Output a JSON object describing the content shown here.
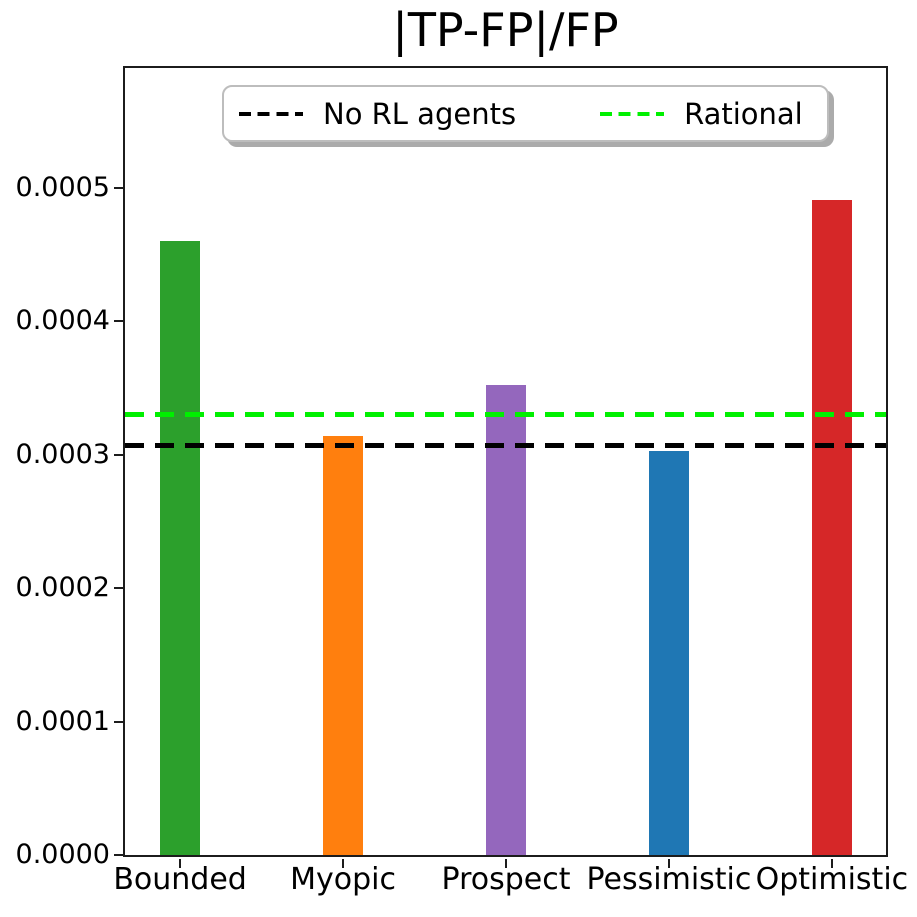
{
  "figure": {
    "title": "|TP-FP|/FP",
    "background_color": "#ffffff",
    "spine_color": "#1c1c1c",
    "text_color": "#000000"
  },
  "legend": {
    "entries": [
      {
        "label": "No RL agents",
        "color": "#000000",
        "line_style": "dashed"
      },
      {
        "label": "Rational",
        "color": "#00f000",
        "line_style": "dashed"
      }
    ]
  },
  "chart_data": {
    "type": "bar",
    "title": "|TP-FP|/FP",
    "categories": [
      "Bounded",
      "Myopic",
      "Prospect",
      "Pessimistic",
      "Optimistic"
    ],
    "values": [
      0.00046,
      0.000314,
      0.000352,
      0.000303,
      0.000491
    ],
    "bar_colors": [
      "#2ca02c",
      "#ff7f0e",
      "#9467bd",
      "#1f77b4",
      "#d62728"
    ],
    "hlines": [
      {
        "label": "No RL agents",
        "value": 0.000307,
        "color": "#000000",
        "style": "dashed"
      },
      {
        "label": "Rational",
        "value": 0.00033,
        "color": "#00f000",
        "style": "dashed"
      }
    ],
    "xlabel": "",
    "ylabel": "",
    "ylim": [
      0,
      0.00059
    ],
    "yticks": [
      0,
      0.0001,
      0.0002,
      0.0003,
      0.0004,
      0.0005
    ],
    "ytick_labels": [
      "0.0000",
      "0.0001",
      "0.0002",
      "0.0003",
      "0.0004",
      "0.0005"
    ],
    "grid": false,
    "legend_position": "upper center"
  }
}
